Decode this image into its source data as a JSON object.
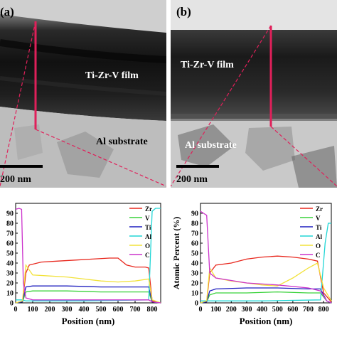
{
  "panels": [
    {
      "label": "(a)",
      "film_label": "Ti-Zr-V film",
      "substrate_label": "Al substrate",
      "scale_bar": "200 nm"
    },
    {
      "label": "(b)",
      "film_label": "Ti-Zr-V film",
      "substrate_label": "Al substrate",
      "scale_bar": "200 nm"
    }
  ],
  "colors": {
    "Zr": "#e8261c",
    "V": "#39d23a",
    "Ti": "#1f1fbf",
    "Al": "#22d6d6",
    "O": "#f2e23a",
    "C": "#cc33cc",
    "line_marker": "#e0205a"
  },
  "chart_data": [
    {
      "type": "line",
      "xlabel": "Position (nm)",
      "ylabel": "",
      "xlim": [
        0,
        850
      ],
      "ylim": [
        0,
        100
      ],
      "xticks": [
        0,
        100,
        200,
        300,
        400,
        500,
        600,
        700,
        800
      ],
      "yticks": [
        0,
        10,
        20,
        30,
        40,
        50,
        60,
        70,
        80,
        90
      ],
      "legend": [
        "Zr",
        "V",
        "Ti",
        "Al",
        "O",
        "C"
      ],
      "legend_position": "top-right",
      "series": [
        {
          "name": "Zr",
          "x": [
            0,
            40,
            60,
            80,
            150,
            250,
            350,
            450,
            550,
            600,
            650,
            700,
            760,
            780,
            800,
            850
          ],
          "y": [
            0,
            1,
            30,
            38,
            41,
            42,
            43,
            44,
            45,
            45,
            38,
            36,
            36,
            35,
            2,
            0
          ]
        },
        {
          "name": "V",
          "x": [
            0,
            40,
            60,
            100,
            300,
            500,
            700,
            780,
            800,
            850
          ],
          "y": [
            0,
            1,
            11,
            12,
            12,
            11,
            11,
            11,
            1,
            0
          ]
        },
        {
          "name": "Ti",
          "x": [
            0,
            40,
            60,
            100,
            300,
            500,
            700,
            780,
            800,
            850
          ],
          "y": [
            0,
            1,
            16,
            17,
            17,
            16,
            16,
            16,
            1,
            0
          ]
        },
        {
          "name": "Al",
          "x": [
            0,
            40,
            60,
            400,
            780,
            800,
            820,
            850
          ],
          "y": [
            3,
            3,
            2,
            2,
            3,
            92,
            95,
            95
          ]
        },
        {
          "name": "O",
          "x": [
            0,
            40,
            60,
            100,
            200,
            300,
            400,
            500,
            600,
            700,
            780,
            800,
            850
          ],
          "y": [
            0,
            2,
            38,
            28,
            27,
            26,
            24,
            22,
            21,
            22,
            24,
            3,
            0
          ]
        },
        {
          "name": "C",
          "x": [
            0,
            20,
            35,
            45,
            60,
            100,
            400,
            780,
            800,
            850
          ],
          "y": [
            94,
            95,
            94,
            20,
            5,
            3,
            3,
            3,
            1,
            0
          ]
        }
      ]
    },
    {
      "type": "line",
      "xlabel": "Position (nm)",
      "ylabel": "Atomic Percent (%)",
      "xlim": [
        0,
        850
      ],
      "ylim": [
        0,
        100
      ],
      "xticks": [
        0,
        100,
        200,
        300,
        400,
        500,
        600,
        700,
        800
      ],
      "yticks": [
        0,
        10,
        20,
        30,
        40,
        50,
        60,
        70,
        80,
        90
      ],
      "legend": [
        "Zr",
        "V",
        "Ti",
        "Al",
        "O",
        "C"
      ],
      "legend_position": "top-right",
      "series": [
        {
          "name": "Zr",
          "x": [
            0,
            40,
            60,
            100,
            200,
            300,
            400,
            500,
            600,
            700,
            760,
            800,
            850
          ],
          "y": [
            0,
            1,
            30,
            38,
            40,
            44,
            46,
            47,
            46,
            44,
            42,
            10,
            1
          ]
        },
        {
          "name": "V",
          "x": [
            0,
            40,
            60,
            100,
            300,
            500,
            700,
            780,
            820,
            850
          ],
          "y": [
            0,
            1,
            8,
            10,
            10,
            11,
            10,
            10,
            2,
            0
          ]
        },
        {
          "name": "Ti",
          "x": [
            0,
            40,
            60,
            100,
            300,
            500,
            700,
            780,
            820,
            850
          ],
          "y": [
            0,
            1,
            12,
            14,
            15,
            15,
            14,
            14,
            2,
            0
          ]
        },
        {
          "name": "Al",
          "x": [
            0,
            40,
            60,
            400,
            780,
            810,
            830,
            850
          ],
          "y": [
            2,
            2,
            2,
            2,
            3,
            60,
            80,
            80
          ]
        },
        {
          "name": "O",
          "x": [
            0,
            40,
            60,
            100,
            200,
            300,
            400,
            500,
            600,
            700,
            760,
            800,
            850
          ],
          "y": [
            0,
            2,
            35,
            25,
            22,
            20,
            18,
            17,
            25,
            35,
            40,
            15,
            2
          ]
        },
        {
          "name": "C",
          "x": [
            0,
            20,
            40,
            60,
            100,
            300,
            500,
            700,
            780,
            820,
            850
          ],
          "y": [
            92,
            90,
            88,
            30,
            25,
            20,
            18,
            15,
            12,
            2,
            0
          ]
        }
      ]
    }
  ]
}
